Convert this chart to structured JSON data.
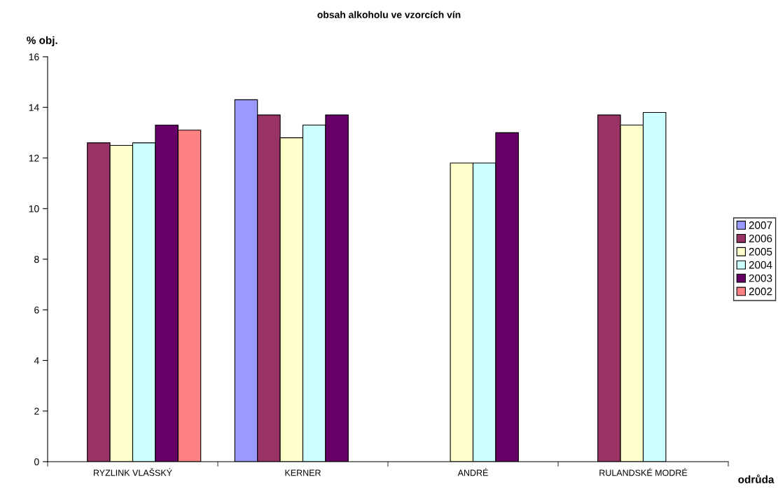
{
  "chart_data": {
    "type": "bar",
    "title": "obsah alkoholu ve vzorcích vín",
    "ylabel": "% obj.",
    "xlabel": "odrůda",
    "categories": [
      "RYZLINK VLAŠSKÝ",
      "KERNER",
      "ANDRÉ",
      "RULANDSKÉ MODRÉ"
    ],
    "series": [
      {
        "name": "2007",
        "color": "#9999ff",
        "values": [
          null,
          14.3,
          null,
          null
        ]
      },
      {
        "name": "2006",
        "color": "#993366",
        "values": [
          12.6,
          13.7,
          null,
          13.7
        ]
      },
      {
        "name": "2005",
        "color": "#ffffcc",
        "values": [
          12.5,
          12.8,
          11.8,
          13.3
        ]
      },
      {
        "name": "2004",
        "color": "#ccffff",
        "values": [
          12.6,
          13.3,
          11.8,
          13.8
        ]
      },
      {
        "name": "2003",
        "color": "#660066",
        "values": [
          13.3,
          13.7,
          13.0,
          null
        ]
      },
      {
        "name": "2002",
        "color": "#ff8080",
        "values": [
          13.1,
          null,
          null,
          null
        ]
      }
    ],
    "ylim": [
      0,
      16
    ],
    "yticks": [
      0,
      2,
      4,
      6,
      8,
      10,
      12,
      14,
      16
    ],
    "grid": false,
    "legend": "right"
  }
}
